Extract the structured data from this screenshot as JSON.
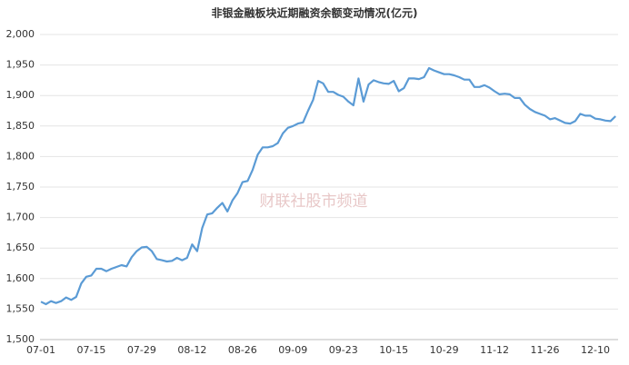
{
  "chart_data": {
    "type": "line",
    "title": "非银金融板块近期融资余额变动情况(亿元)",
    "watermark": "财联社股市频道",
    "categories": [
      "07-01",
      null,
      null,
      null,
      null,
      null,
      null,
      null,
      null,
      null,
      "07-15",
      null,
      null,
      null,
      null,
      null,
      null,
      null,
      null,
      null,
      "07-29",
      null,
      null,
      null,
      null,
      null,
      null,
      null,
      null,
      null,
      "08-12",
      null,
      null,
      null,
      null,
      null,
      null,
      null,
      null,
      null,
      "08-26",
      null,
      null,
      null,
      null,
      null,
      null,
      null,
      null,
      null,
      "09-09",
      null,
      null,
      null,
      null,
      null,
      null,
      null,
      null,
      null,
      "09-23",
      null,
      null,
      null,
      null,
      null,
      null,
      null,
      null,
      null,
      "10-15",
      null,
      null,
      null,
      null,
      null,
      null,
      null,
      null,
      null,
      "10-29",
      null,
      null,
      null,
      null,
      null,
      null,
      null,
      null,
      null,
      "11-12",
      null,
      null,
      null,
      null,
      null,
      null,
      null,
      null,
      null,
      "11-26",
      null,
      null,
      null,
      null,
      null,
      null,
      null,
      null,
      null,
      "12-10",
      null,
      null,
      null,
      null
    ],
    "series": [
      {
        "color": "#5b9bd5",
        "values": [
          1562,
          1558,
          1563,
          1560,
          1563,
          1569,
          1565,
          1570,
          1592,
          1603,
          1605,
          1616,
          1616,
          1612,
          1616,
          1619,
          1622,
          1620,
          1635,
          1645,
          1651,
          1652,
          1645,
          1632,
          1630,
          1628,
          1629,
          1634,
          1630,
          1634,
          1656,
          1645,
          1683,
          1705,
          1707,
          1716,
          1724,
          1710,
          1728,
          1740,
          1758,
          1760,
          1778,
          1803,
          1815,
          1815,
          1817,
          1822,
          1838,
          1847,
          1850,
          1854,
          1856,
          1875,
          1893,
          1924,
          1920,
          1906,
          1906,
          1901,
          1898,
          1890,
          1884,
          1928,
          1890,
          1918,
          1925,
          1922,
          1920,
          1919,
          1924,
          1907,
          1912,
          1928,
          1928,
          1927,
          1930,
          1945,
          1941,
          1938,
          1935,
          1935,
          1933,
          1930,
          1926,
          1926,
          1914,
          1914,
          1917,
          1913,
          1907,
          1902,
          1903,
          1902,
          1896,
          1896,
          1885,
          1878,
          1873,
          1870,
          1867,
          1861,
          1863,
          1859,
          1855,
          1854,
          1858,
          1870,
          1867,
          1867,
          1862,
          1861,
          1859,
          1858,
          1866
        ]
      }
    ],
    "ylim": [
      1500,
      2000
    ],
    "yticks": [
      {
        "value": 1500,
        "label": "1,500"
      },
      {
        "value": 1550,
        "label": "1,550"
      },
      {
        "value": 1600,
        "label": "1,600"
      },
      {
        "value": 1650,
        "label": "1,650"
      },
      {
        "value": 1700,
        "label": "1,700"
      },
      {
        "value": 1750,
        "label": "1,750"
      },
      {
        "value": 1800,
        "label": "1,800"
      },
      {
        "value": 1850,
        "label": "1,850"
      },
      {
        "value": 1900,
        "label": "1,900"
      },
      {
        "value": 1950,
        "label": "1,950"
      },
      {
        "value": 2000,
        "label": "2,000"
      }
    ],
    "grid": true
  }
}
